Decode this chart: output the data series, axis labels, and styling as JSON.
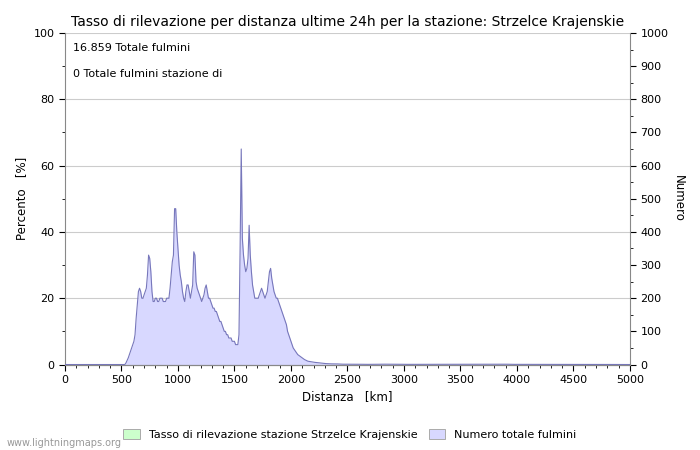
{
  "title": "Tasso di rilevazione per distanza ultime 24h per la stazione: Strzelce Krajenskie",
  "xlabel": "Distanza   [km]",
  "ylabel_left": "Percento   [%]",
  "ylabel_right": "Numero",
  "annotation_line1": "16.859 Totale fulmini",
  "annotation_line2": "0 Totale fulmini stazione di",
  "xlim": [
    0,
    5000
  ],
  "ylim_left": [
    0,
    100
  ],
  "ylim_right": [
    0,
    1000
  ],
  "xticks": [
    0,
    500,
    1000,
    1500,
    2000,
    2500,
    3000,
    3500,
    4000,
    4500,
    5000
  ],
  "yticks_left": [
    0,
    20,
    40,
    60,
    80,
    100
  ],
  "yticks_right": [
    0,
    100,
    200,
    300,
    400,
    500,
    600,
    700,
    800,
    900,
    1000
  ],
  "legend_label_green": "Tasso di rilevazione stazione Strzelce Krajenskie",
  "legend_label_blue": "Numero totale fulmini",
  "watermark": "www.lightningmaps.org",
  "fill_color_green": "#ccffcc",
  "fill_color_blue": "#d8d8ff",
  "line_color": "#7777bb",
  "background_color": "#ffffff",
  "grid_color": "#cccccc",
  "title_fontsize": 10,
  "axis_fontsize": 8.5,
  "tick_fontsize": 8
}
